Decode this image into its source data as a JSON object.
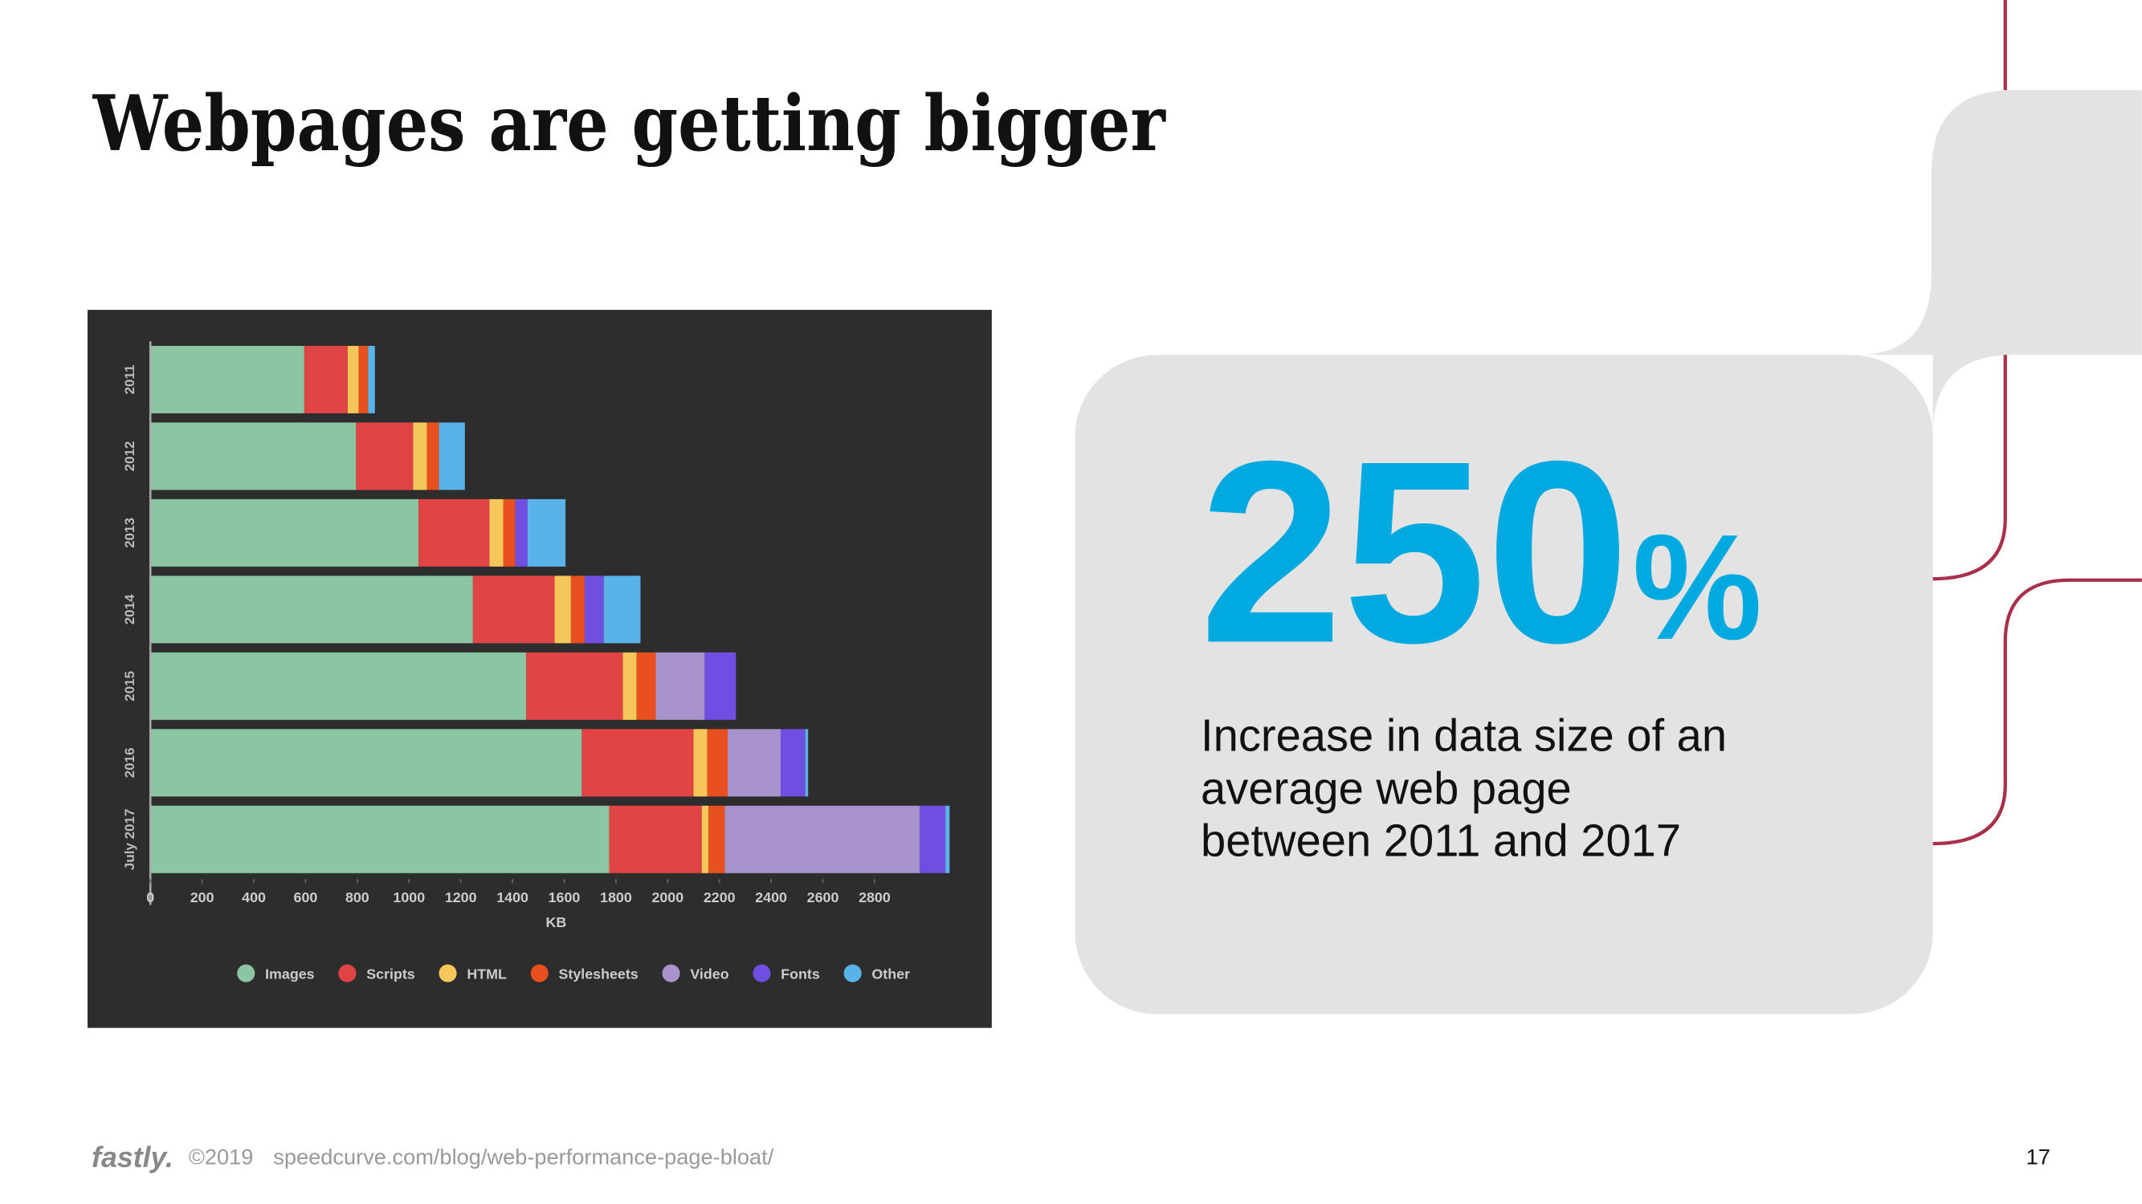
{
  "title": "Webpages are getting bigger",
  "stat": {
    "number": "250",
    "unit": "%",
    "description": [
      "Increase in data size of an",
      "average web page",
      "between 2011 and 2017"
    ]
  },
  "footer": {
    "logo": "fastly.",
    "copyright": "©2019",
    "source": "speedcurve.com/blog/web-performance-page-bloat/",
    "page": "17"
  },
  "chart_data": {
    "type": "stacked-barh",
    "x_label": "KB",
    "categories": [
      "2011",
      "2012",
      "2013",
      "2014",
      "2015",
      "2016",
      "July 2017"
    ],
    "xlim": [
      0,
      3100
    ],
    "xticks": [
      0,
      200,
      400,
      600,
      800,
      1000,
      1200,
      1400,
      1600,
      1800,
      2000,
      2200,
      2400,
      2600,
      2800
    ],
    "series": [
      {
        "name": "Images",
        "color": "#8cc5a2",
        "values": [
          595,
          795,
          1037,
          1247,
          1453,
          1668,
          1774
        ]
      },
      {
        "name": "Scripts",
        "color": "#e04444",
        "values": [
          168,
          221,
          274,
          316,
          374,
          432,
          358
        ]
      },
      {
        "name": "HTML",
        "color": "#f5c75b",
        "values": [
          42,
          53,
          53,
          63,
          53,
          53,
          26
        ]
      },
      {
        "name": "Stylesheets",
        "color": "#e8501f",
        "values": [
          37,
          47,
          47,
          53,
          74,
          79,
          63
        ]
      },
      {
        "name": "Video",
        "color": "#a993cc",
        "values": [
          0,
          0,
          0,
          0,
          189,
          205,
          753
        ]
      },
      {
        "name": "Fonts",
        "color": "#6f4fe0",
        "values": [
          0,
          0,
          47,
          74,
          121,
          95,
          100
        ]
      },
      {
        "name": "Other",
        "color": "#5ab3e8",
        "values": [
          26,
          100,
          147,
          142,
          0,
          11,
          16
        ]
      }
    ],
    "legend": "bottom"
  }
}
